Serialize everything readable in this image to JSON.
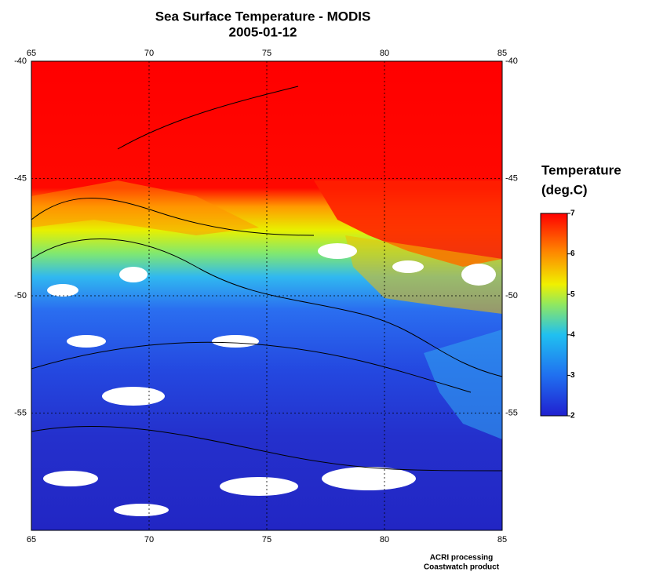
{
  "map": {
    "title": "Sea Surface Temperature - MODIS",
    "subtitle": "2005-01-12",
    "xlim": [
      65,
      85
    ],
    "xticks": [
      65,
      70,
      75,
      80,
      85
    ],
    "ylim": [
      -40,
      -60
    ],
    "yticks": [
      -40,
      -45,
      -50,
      -55
    ],
    "colorbar": {
      "title": [
        "Temperature",
        "(deg.C)"
      ],
      "lim": [
        2,
        7
      ],
      "ticks": [
        2,
        3,
        4,
        5,
        6,
        7
      ]
    },
    "credits": [
      "ACRI processing",
      "Coastwatch product"
    ]
  }
}
